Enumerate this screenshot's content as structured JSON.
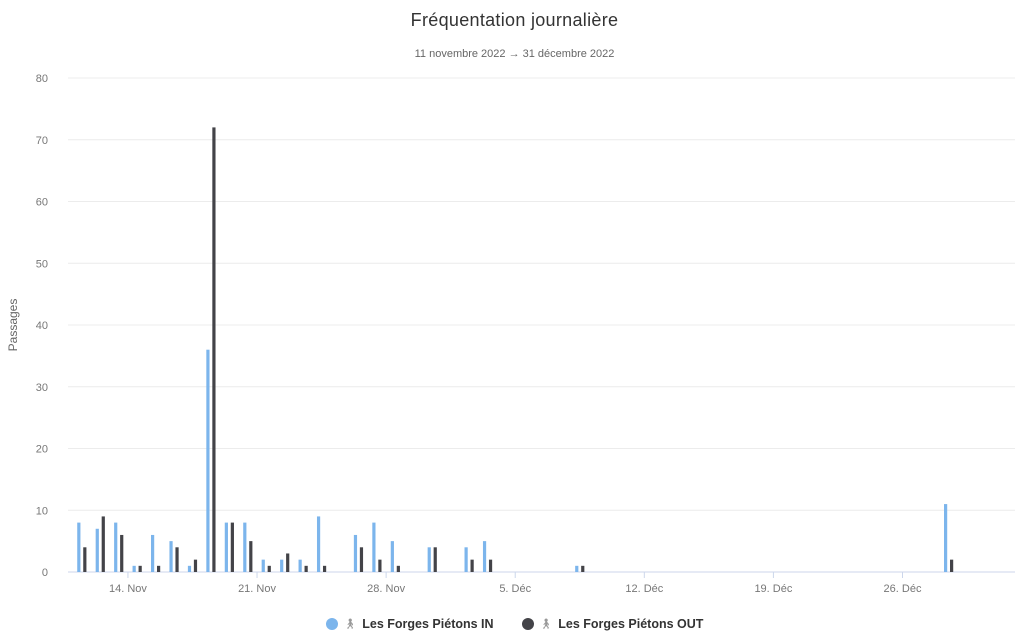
{
  "chart_data": {
    "type": "bar",
    "title": "Fréquentation journalière",
    "subtitle": "11 novembre 2022 → 31 décembre 2022",
    "ylabel": "Passages",
    "xlabel": "",
    "ylim": [
      0,
      80
    ],
    "yticks": [
      0,
      10,
      20,
      30,
      40,
      50,
      60,
      70,
      80
    ],
    "xlim": [
      "2022-11-11",
      "2022-12-31"
    ],
    "xticks": [
      {
        "date": "2022-11-14",
        "label": "14. Nov"
      },
      {
        "date": "2022-11-21",
        "label": "21. Nov"
      },
      {
        "date": "2022-11-28",
        "label": "28. Nov"
      },
      {
        "date": "2022-12-05",
        "label": "5. Déc"
      },
      {
        "date": "2022-12-12",
        "label": "12. Déc"
      },
      {
        "date": "2022-12-19",
        "label": "19. Déc"
      },
      {
        "date": "2022-12-26",
        "label": "26. Déc"
      }
    ],
    "grid": true,
    "legend_position": "bottom",
    "series": [
      {
        "name": "Les Forges Piétons IN",
        "color": "#7cb5ec",
        "points": [
          [
            "2022-11-11",
            8
          ],
          [
            "2022-11-12",
            7
          ],
          [
            "2022-11-13",
            8
          ],
          [
            "2022-11-14",
            1
          ],
          [
            "2022-11-15",
            6
          ],
          [
            "2022-11-16",
            5
          ],
          [
            "2022-11-17",
            1
          ],
          [
            "2022-11-18",
            36
          ],
          [
            "2022-11-19",
            8
          ],
          [
            "2022-11-20",
            8
          ],
          [
            "2022-11-21",
            2
          ],
          [
            "2022-11-22",
            2
          ],
          [
            "2022-11-23",
            2
          ],
          [
            "2022-11-24",
            9
          ],
          [
            "2022-11-26",
            6
          ],
          [
            "2022-11-27",
            8
          ],
          [
            "2022-11-28",
            5
          ],
          [
            "2022-11-30",
            4
          ],
          [
            "2022-12-02",
            4
          ],
          [
            "2022-12-03",
            5
          ],
          [
            "2022-12-08",
            1
          ],
          [
            "2022-12-28",
            11
          ]
        ]
      },
      {
        "name": "Les Forges Piétons OUT",
        "color": "#434348",
        "points": [
          [
            "2022-11-11",
            4
          ],
          [
            "2022-11-12",
            9
          ],
          [
            "2022-11-13",
            6
          ],
          [
            "2022-11-14",
            1
          ],
          [
            "2022-11-15",
            1
          ],
          [
            "2022-11-16",
            4
          ],
          [
            "2022-11-17",
            2
          ],
          [
            "2022-11-18",
            72
          ],
          [
            "2022-11-19",
            8
          ],
          [
            "2022-11-20",
            5
          ],
          [
            "2022-11-21",
            1
          ],
          [
            "2022-11-22",
            3
          ],
          [
            "2022-11-23",
            1
          ],
          [
            "2022-11-24",
            1
          ],
          [
            "2022-11-26",
            4
          ],
          [
            "2022-11-27",
            2
          ],
          [
            "2022-11-28",
            1
          ],
          [
            "2022-11-30",
            4
          ],
          [
            "2022-12-02",
            2
          ],
          [
            "2022-12-03",
            2
          ],
          [
            "2022-12-08",
            1
          ],
          [
            "2022-12-28",
            2
          ]
        ]
      }
    ]
  }
}
